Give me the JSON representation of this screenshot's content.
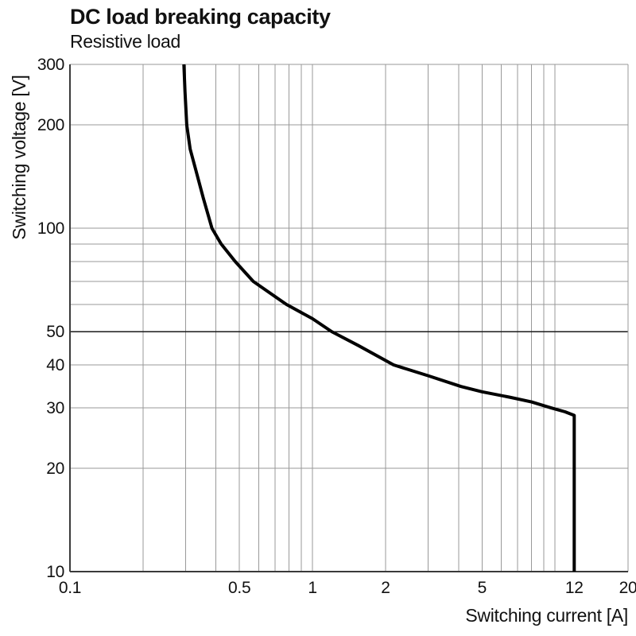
{
  "chart_data": {
    "type": "line",
    "title": "DC load breaking capacity",
    "subtitle": "Resistive load",
    "xlabel": "Switching current [A]",
    "ylabel": "Switching voltage [V]",
    "x_scale": "log",
    "y_scale": "log",
    "xlim": [
      0.1,
      20
    ],
    "ylim": [
      10,
      300
    ],
    "grid": true,
    "legend": false,
    "x_ticks": [
      {
        "value": 0.1,
        "label": "0.1"
      },
      {
        "value": 0.5,
        "label": "0.5"
      },
      {
        "value": 1,
        "label": "1"
      },
      {
        "value": 2,
        "label": "2"
      },
      {
        "value": 5,
        "label": "5"
      },
      {
        "value": 12,
        "label": "12"
      },
      {
        "value": 20,
        "label": "20"
      }
    ],
    "y_ticks": [
      {
        "value": 300,
        "label": "300"
      },
      {
        "value": 200,
        "label": "200"
      },
      {
        "value": 100,
        "label": "100"
      },
      {
        "value": 50,
        "label": "50"
      },
      {
        "value": 40,
        "label": "40"
      },
      {
        "value": 30,
        "label": "30"
      },
      {
        "value": 20,
        "label": "20"
      },
      {
        "value": 10,
        "label": "10"
      }
    ],
    "x_gridlines": [
      0.2,
      0.3,
      0.4,
      0.5,
      0.6,
      0.7,
      0.8,
      0.9,
      1,
      2,
      3,
      4,
      5,
      6,
      7,
      8,
      9,
      10
    ],
    "y_gridlines": [
      20,
      30,
      40,
      50,
      60,
      70,
      80,
      90,
      100,
      200
    ],
    "y_gridlines_emphasized": [
      50
    ],
    "series": [
      {
        "name": "Resistive load",
        "color": "#000000",
        "points": [
          [
            0.295,
            300
          ],
          [
            0.298,
            250
          ],
          [
            0.303,
            200
          ],
          [
            0.313,
            170
          ],
          [
            0.33,
            148
          ],
          [
            0.355,
            122
          ],
          [
            0.385,
            100
          ],
          [
            0.42,
            90
          ],
          [
            0.48,
            80
          ],
          [
            0.57,
            70
          ],
          [
            0.78,
            60
          ],
          [
            1.0,
            54.5
          ],
          [
            1.2,
            50
          ],
          [
            1.55,
            45.5
          ],
          [
            2.16,
            40
          ],
          [
            3.0,
            37.2
          ],
          [
            4.1,
            34.6
          ],
          [
            5.0,
            33.4
          ],
          [
            6.5,
            32.2
          ],
          [
            8.0,
            31.2
          ],
          [
            9.6,
            30
          ],
          [
            11.0,
            29.2
          ],
          [
            12.0,
            28.5
          ],
          [
            12.0,
            10
          ]
        ]
      }
    ]
  },
  "colors": {
    "background": "#ffffff",
    "text": "#111111",
    "grid": "#999999",
    "grid_emphasized": "#1a1a1a",
    "axis": "#3a3a3a",
    "curve": "#000000"
  }
}
